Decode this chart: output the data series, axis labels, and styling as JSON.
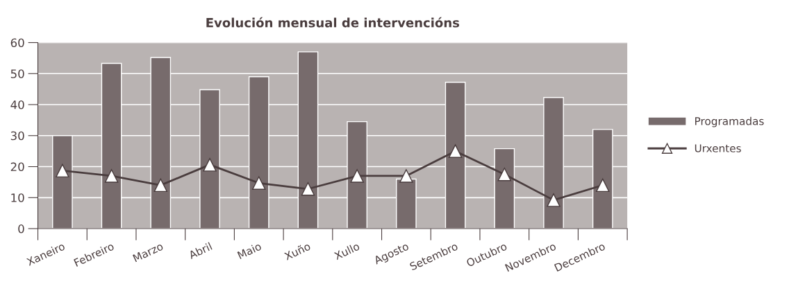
{
  "chart_data": {
    "type": "bar",
    "title": "Evolución mensual de intervencións",
    "categories": [
      "Xaneiro",
      "Febreiro",
      "Marzo",
      "Abril",
      "Maio",
      "Xuño",
      "Xullo",
      "Agosto",
      "Setembro",
      "Outubro",
      "Novembro",
      "Decembro"
    ],
    "series": [
      {
        "name": "Programadas",
        "color": "#776b6c",
        "values": [
          30,
          53.3,
          55.2,
          44.8,
          49,
          57,
          34.5,
          16,
          47.2,
          25.8,
          42.3,
          32
        ]
      },
      {
        "name": "Urxentes",
        "type": "line",
        "color": "#4a3d3e",
        "marker": "triangle",
        "values": [
          18.7,
          17,
          14,
          20.6,
          14.7,
          12.8,
          17,
          17,
          25,
          17.5,
          9.2,
          14
        ]
      }
    ],
    "ylim": [
      0,
      60
    ],
    "yticks": [
      0,
      10,
      20,
      30,
      40,
      50,
      60
    ],
    "grid": "y",
    "legend": "right"
  }
}
